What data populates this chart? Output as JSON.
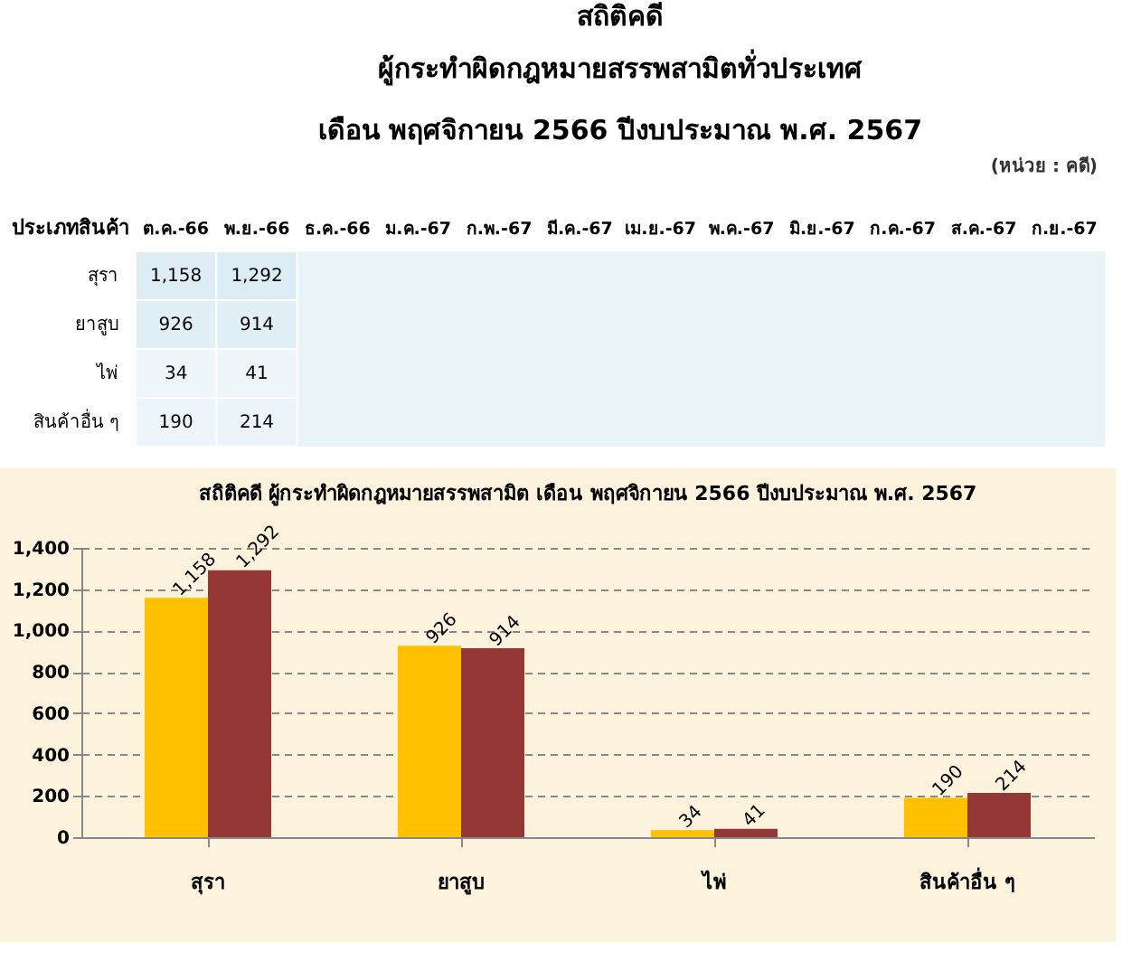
{
  "chart_data": [
    {
      "type": "heatmap",
      "title": "สถิติคดี",
      "subtitle": "ผู้กระทำผิดกฎหมายสรรพสามิตทั่วประเทศ\nเดือน พฤศจิกายน 2566 ปีงบประมาณ พ.ศ. 2567",
      "annotations": [
        "(หน่วย : คดี)"
      ],
      "ylabel": "ประเภทสินค้า",
      "categories": [
        "ต.ค.-66",
        "พ.ย.-66",
        "ธ.ค.-66",
        "ม.ค.-67",
        "ก.พ.-67",
        "มี.ค.-67",
        "เม.ย.-67",
        "พ.ค.-67",
        "มิ.ย.-67",
        "ก.ค.-67",
        "ส.ค.-67",
        "ก.ย.-67"
      ],
      "y_categories": [
        "สุรา",
        "ยาสูบ",
        "ไพ่",
        "สินค้าอื่น ๆ"
      ],
      "cells": [
        [
          1158,
          1292,
          null,
          null,
          null,
          null,
          null,
          null,
          null,
          null,
          null,
          null
        ],
        [
          926,
          914,
          null,
          null,
          null,
          null,
          null,
          null,
          null,
          null,
          null,
          null
        ],
        [
          34,
          41,
          null,
          null,
          null,
          null,
          null,
          null,
          null,
          null,
          null,
          null
        ],
        [
          190,
          214,
          null,
          null,
          null,
          null,
          null,
          null,
          null,
          null,
          null,
          null
        ]
      ],
      "cell_labels": [
        [
          "1,158",
          "1,292",
          null,
          null,
          null,
          null,
          null,
          null,
          null,
          null,
          null,
          null
        ],
        [
          "926",
          "914",
          null,
          null,
          null,
          null,
          null,
          null,
          null,
          null,
          null,
          null
        ],
        [
          "34",
          "41",
          null,
          null,
          null,
          null,
          null,
          null,
          null,
          null,
          null,
          null
        ],
        [
          "190",
          "214",
          null,
          null,
          null,
          null,
          null,
          null,
          null,
          null,
          null,
          null
        ]
      ]
    },
    {
      "type": "bar",
      "title": "สถิติคดี ผู้กระทำผิดกฎหมายสรรพสามิต เดือน พฤศจิกายน 2566 ปีงบประมาณ พ.ศ. 2567",
      "categories": [
        "สุรา",
        "ยาสูบ",
        "ไพ่",
        "สินค้าอื่น ๆ"
      ],
      "series": [
        {
          "color": "#ffc000",
          "values": [
            1158,
            926,
            34,
            190
          ],
          "value_labels": [
            "1,158",
            "926",
            "34",
            "190"
          ]
        },
        {
          "color": "#953735",
          "values": [
            1292,
            914,
            41,
            214
          ],
          "value_labels": [
            "1,292",
            "914",
            "41",
            "214"
          ]
        }
      ],
      "ylim": [
        0,
        1400
      ],
      "yticks": [
        0,
        200,
        400,
        600,
        800,
        {
          "value": 1000,
          "label": "1,000"
        },
        {
          "value": 1200,
          "label": "1,200"
        },
        {
          "value": 1400,
          "label": "1,400"
        }
      ],
      "grid": "y"
    }
  ]
}
